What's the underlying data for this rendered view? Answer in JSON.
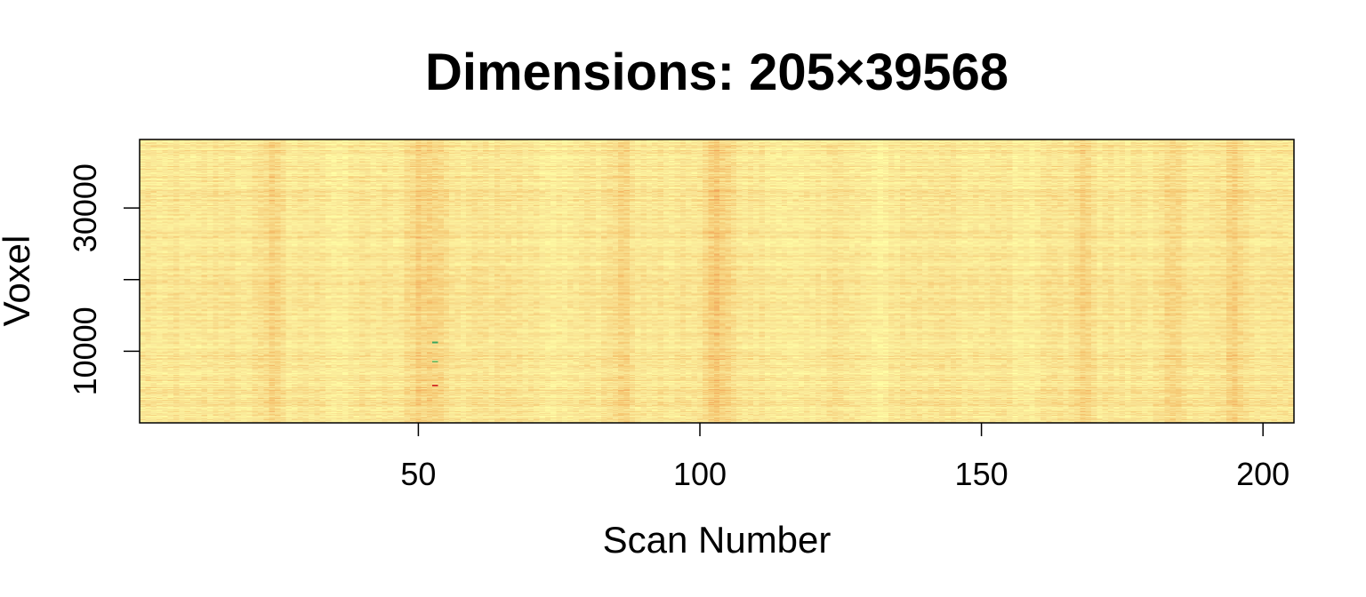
{
  "chart_data": {
    "type": "heatmap",
    "title": "Dimensions: 205×39568",
    "xlabel": "Scan Number",
    "ylabel": "Voxel",
    "n_scans": 205,
    "n_voxels": 39568,
    "xlim": [
      0.5,
      205.5
    ],
    "ylim": [
      0.5,
      39568.5
    ],
    "x_ticks": [
      50,
      100,
      150,
      200
    ],
    "y_ticks": [
      10000,
      20000,
      30000
    ],
    "y_tick_labels": [
      "10000",
      "",
      "30000"
    ],
    "colormap": [
      "#e54a2e",
      "#ef8d4a",
      "#f5c46e",
      "#f9e596",
      "#ffffa6"
    ],
    "grid": false,
    "legend": "none",
    "darker_columns": [
      24,
      50,
      53,
      86,
      102,
      104,
      168,
      184,
      195
    ],
    "lighter_columns": [
      35,
      75,
      115,
      132,
      158
    ],
    "outlier_points": [
      {
        "scan": 53,
        "voxel": 5200,
        "color": "#d63a2a"
      },
      {
        "scan": 53,
        "voxel": 11300,
        "color": "#3aa35c"
      },
      {
        "scan": 53,
        "voxel": 8600,
        "color": "#7fbf6a"
      }
    ]
  }
}
